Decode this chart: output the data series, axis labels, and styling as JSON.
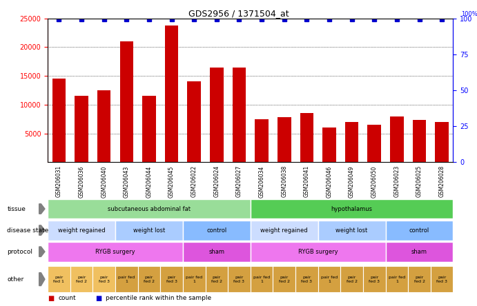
{
  "title": "GDS2956 / 1371504_at",
  "samples": [
    "GSM206031",
    "GSM206036",
    "GSM206040",
    "GSM206043",
    "GSM206044",
    "GSM206045",
    "GSM206022",
    "GSM206024",
    "GSM206027",
    "GSM206034",
    "GSM206038",
    "GSM206041",
    "GSM206046",
    "GSM206049",
    "GSM206050",
    "GSM206023",
    "GSM206025",
    "GSM206028"
  ],
  "counts": [
    14500,
    11500,
    12500,
    21000,
    11500,
    23800,
    14000,
    16500,
    16500,
    7500,
    7800,
    8500,
    6000,
    7000,
    6500,
    7900,
    7300,
    7000
  ],
  "percentile_near_max": [
    true,
    true,
    true,
    true,
    true,
    true,
    true,
    true,
    true,
    true,
    true,
    true,
    true,
    true,
    true,
    true,
    true,
    true
  ],
  "ylim_left": [
    0,
    25000
  ],
  "ylim_right": [
    0,
    100
  ],
  "yticks_left": [
    5000,
    10000,
    15000,
    20000,
    25000
  ],
  "yticks_right": [
    0,
    25,
    50,
    75,
    100
  ],
  "bar_color": "#cc0000",
  "dot_color": "#0000cc",
  "tissue_row": {
    "label": "tissue",
    "segments": [
      {
        "text": "subcutaneous abdominal fat",
        "start": 0,
        "end": 9,
        "color": "#99dd99"
      },
      {
        "text": "hypothalamus",
        "start": 9,
        "end": 18,
        "color": "#55cc55"
      }
    ]
  },
  "disease_row": {
    "label": "disease state",
    "segments": [
      {
        "text": "weight regained",
        "start": 0,
        "end": 3,
        "color": "#ccddff"
      },
      {
        "text": "weight lost",
        "start": 3,
        "end": 6,
        "color": "#aaccff"
      },
      {
        "text": "control",
        "start": 6,
        "end": 9,
        "color": "#88bbff"
      },
      {
        "text": "weight regained",
        "start": 9,
        "end": 12,
        "color": "#ccddff"
      },
      {
        "text": "weight lost",
        "start": 12,
        "end": 15,
        "color": "#aaccff"
      },
      {
        "text": "control",
        "start": 15,
        "end": 18,
        "color": "#88bbff"
      }
    ]
  },
  "protocol_row": {
    "label": "protocol",
    "segments": [
      {
        "text": "RYGB surgery",
        "start": 0,
        "end": 6,
        "color": "#ee77ee"
      },
      {
        "text": "sham",
        "start": 6,
        "end": 9,
        "color": "#dd55dd"
      },
      {
        "text": "RYGB surgery",
        "start": 9,
        "end": 15,
        "color": "#ee77ee"
      },
      {
        "text": "sham",
        "start": 15,
        "end": 18,
        "color": "#dd55dd"
      }
    ]
  },
  "other_row": {
    "label": "other",
    "cells": [
      "pair\nfed 1",
      "pair\nfed 2",
      "pair\nfed 3",
      "pair fed\n1",
      "pair\nfed 2",
      "pair\nfed 3",
      "pair fed\n1",
      "pair\nfed 2",
      "pair\nfed 3",
      "pair fed\n1",
      "pair\nfed 2",
      "pair\nfed 3",
      "pair fed\n1",
      "pair\nfed 2",
      "pair\nfed 3",
      "pair fed\n1",
      "pair\nfed 2",
      "pair\nfed 3"
    ],
    "colors": [
      "#f0c060",
      "#f0c060",
      "#f0c060",
      "#d4a040",
      "#d4a040",
      "#d4a040",
      "#d4a040",
      "#d4a040",
      "#d4a040",
      "#d4a040",
      "#d4a040",
      "#d4a040",
      "#d4a040",
      "#d4a040",
      "#d4a040",
      "#d4a040",
      "#d4a040",
      "#d4a040"
    ]
  },
  "legend_count_color": "#cc0000",
  "legend_pct_color": "#0000cc",
  "background_color": "#ffffff"
}
